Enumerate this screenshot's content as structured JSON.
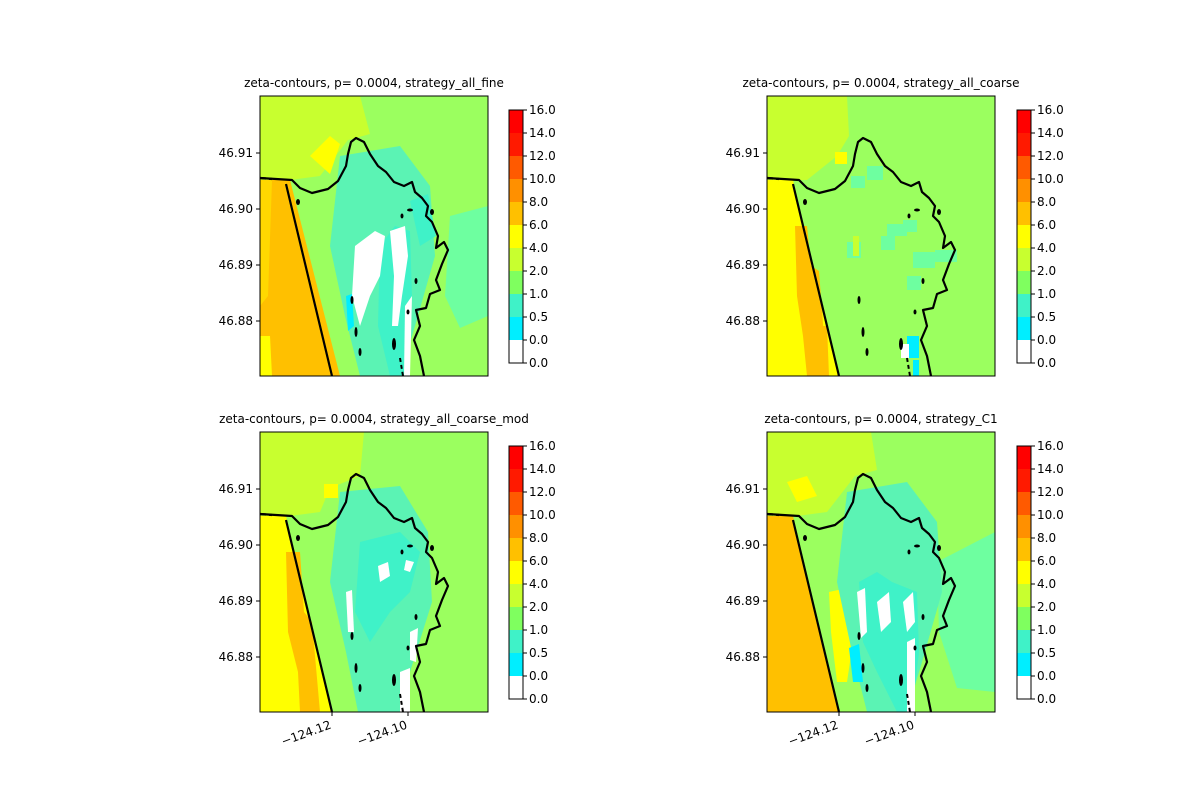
{
  "colorbar": {
    "levels": [
      "0.0",
      "0.0",
      "0.5",
      "1.0",
      "2.0",
      "4.0",
      "6.0",
      "8.0",
      "10.0",
      "12.0",
      "14.0",
      "16.0"
    ],
    "colors": [
      "#ffffff",
      "#00eeff",
      "#3ff2c8",
      "#7fff5f",
      "#c8ff2f",
      "#ffff00",
      "#ffc000",
      "#ff9000",
      "#ff5a00",
      "#ff1a00",
      "#ff0000"
    ]
  },
  "y_ticks": [
    "46.91",
    "46.90",
    "46.89",
    "46.88"
  ],
  "x_ticks": [
    "−124.12",
    "−124.10"
  ],
  "chart_data": [
    {
      "type": "heatmap",
      "title": "zeta-contours, p= 0.0004, strategy_all_fine",
      "xticks": [
        -124.12,
        -124.1
      ],
      "yticks": [
        46.91,
        46.9,
        46.89,
        46.88
      ],
      "xlim": [
        -124.14,
        -124.079
      ],
      "ylim": [
        46.8705,
        46.92
      ],
      "color_levels": [
        0.0,
        0.0,
        0.5,
        1.0,
        2.0,
        4.0,
        6.0,
        8.0,
        10.0,
        12.0,
        14.0,
        16.0
      ]
    },
    {
      "type": "heatmap",
      "title": "zeta-contours, p= 0.0004, strategy_all_coarse",
      "xticks": [
        -124.12,
        -124.1
      ],
      "yticks": [
        46.91,
        46.9,
        46.89,
        46.88
      ],
      "xlim": [
        -124.14,
        -124.079
      ],
      "ylim": [
        46.8705,
        46.92
      ],
      "color_levels": [
        0.0,
        0.0,
        0.5,
        1.0,
        2.0,
        4.0,
        6.0,
        8.0,
        10.0,
        12.0,
        14.0,
        16.0
      ]
    },
    {
      "type": "heatmap",
      "title": "zeta-contours, p= 0.0004, strategy_all_coarse_mod",
      "xticks": [
        -124.12,
        -124.1
      ],
      "yticks": [
        46.91,
        46.9,
        46.89,
        46.88
      ],
      "xlim": [
        -124.14,
        -124.079
      ],
      "ylim": [
        46.8705,
        46.92
      ],
      "color_levels": [
        0.0,
        0.0,
        0.5,
        1.0,
        2.0,
        4.0,
        6.0,
        8.0,
        10.0,
        12.0,
        14.0,
        16.0
      ]
    },
    {
      "type": "heatmap",
      "title": "zeta-contours, p= 0.0004, strategy_C1",
      "xticks": [
        -124.12,
        -124.1
      ],
      "yticks": [
        46.91,
        46.9,
        46.89,
        46.88
      ],
      "xlim": [
        -124.14,
        -124.079
      ],
      "ylim": [
        46.8705,
        46.92
      ],
      "color_levels": [
        0.0,
        0.0,
        0.5,
        1.0,
        2.0,
        4.0,
        6.0,
        8.0,
        10.0,
        12.0,
        14.0,
        16.0
      ]
    }
  ]
}
